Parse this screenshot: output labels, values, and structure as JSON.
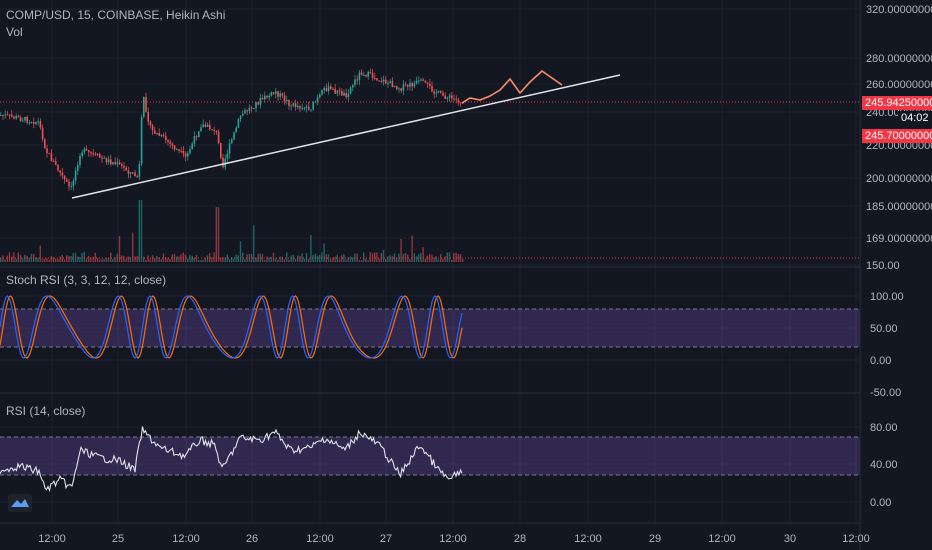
{
  "header": {
    "symbol_line": "COMP/USD, 15, COINBASE, Heikin Ashi",
    "volume_label": "Vol"
  },
  "panes": {
    "stoch_title": "Stoch RSI (3, 3, 12, 12, close)",
    "rsi_title": "RSI (14, close)"
  },
  "price_axis": {
    "labels": [
      "320.00000000",
      "280.00000000",
      "260.00000000",
      "240.00000000",
      "220.00000000",
      "200.00000000",
      "185.00000000",
      "169.00000000",
      "150.00"
    ],
    "values": [
      320,
      280,
      260,
      240,
      220,
      200,
      185,
      169,
      150
    ],
    "stoch_labels": [
      "100.00",
      "50.00",
      "0.00",
      "-50.00"
    ],
    "stoch_values": [
      100,
      50,
      0,
      -50
    ],
    "rsi_labels": [
      "80.00",
      "40.00",
      "0.00"
    ],
    "rsi_values": [
      80,
      40,
      0
    ]
  },
  "tags": {
    "last_price": "245.94250000",
    "countdown": "04:02",
    "alert_price": "245.70000000"
  },
  "time_axis": {
    "labels": [
      "12:00",
      "25",
      "12:00",
      "26",
      "12:00",
      "27",
      "12:00",
      "28",
      "12:00",
      "29",
      "12:00",
      "30",
      "12:00"
    ]
  },
  "colors": {
    "background": "#131722",
    "up": "#26a69a",
    "down": "#ef5350",
    "price_line": "#f23645",
    "stoch_k": "#2962ff",
    "stoch_d": "#ff6d00",
    "band": "#7e57c2",
    "projection": "#ff8a65"
  }
}
